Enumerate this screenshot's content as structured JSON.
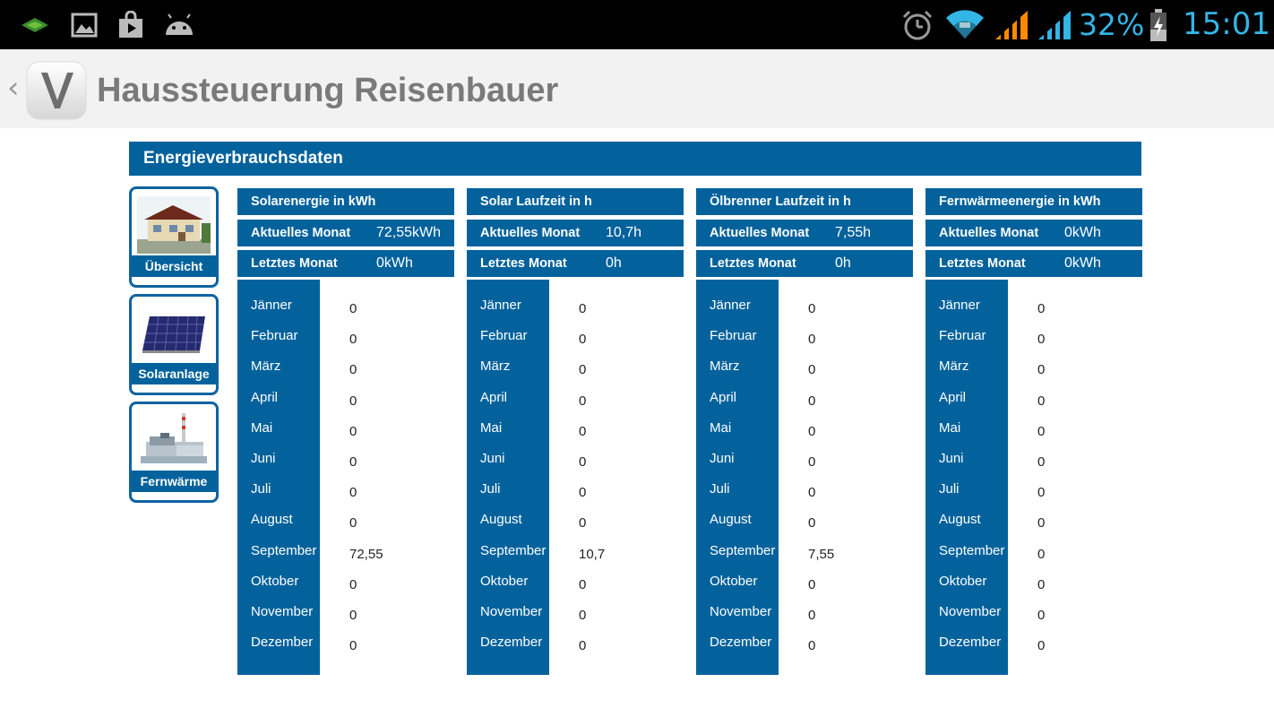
{
  "status_bar": {
    "left_icons": [
      "stack-app-icon",
      "gallery-icon",
      "store-icon",
      "android-icon"
    ],
    "right_icons": [
      "alarm-icon",
      "wifi-icon",
      "signal-orange-icon",
      "signal-blue-icon",
      "battery-charging-icon"
    ],
    "battery": "32%",
    "time": "15:01",
    "accent": "#33b5e5"
  },
  "action_bar": {
    "title": "Haussteuerung Reisenbauer",
    "logo_letter": "V"
  },
  "page": {
    "header": "Energieverbrauchsdaten",
    "brand_color": "#03629c"
  },
  "nav": [
    {
      "label": "Übersicht",
      "icon": "house-icon"
    },
    {
      "label": "Solaranlage",
      "icon": "solar-panel-icon"
    },
    {
      "label": "Fernwärme",
      "icon": "heating-plant-icon"
    }
  ],
  "columns": [
    {
      "title": "Solarenergie in kWh",
      "current_label": "Aktuelles Monat",
      "current_value": "72,55kWh",
      "last_label": "Letztes Monat",
      "last_value": "0kWh",
      "months": [
        {
          "name": "Jänner",
          "value": "0"
        },
        {
          "name": "Februar",
          "value": "0"
        },
        {
          "name": "März",
          "value": "0"
        },
        {
          "name": "April",
          "value": "0"
        },
        {
          "name": "Mai",
          "value": "0"
        },
        {
          "name": "Juni",
          "value": "0"
        },
        {
          "name": "Juli",
          "value": "0"
        },
        {
          "name": "August",
          "value": "0"
        },
        {
          "name": "September",
          "value": "72,55"
        },
        {
          "name": "Oktober",
          "value": "0"
        },
        {
          "name": "November",
          "value": "0"
        },
        {
          "name": "Dezember",
          "value": "0"
        }
      ]
    },
    {
      "title": "Solar Laufzeit in h",
      "current_label": "Aktuelles Monat",
      "current_value": "10,7h",
      "last_label": "Letztes Monat",
      "last_value": "0h",
      "months": [
        {
          "name": "Jänner",
          "value": "0"
        },
        {
          "name": "Februar",
          "value": "0"
        },
        {
          "name": "März",
          "value": "0"
        },
        {
          "name": "April",
          "value": "0"
        },
        {
          "name": "Mai",
          "value": "0"
        },
        {
          "name": "Juni",
          "value": "0"
        },
        {
          "name": "Juli",
          "value": "0"
        },
        {
          "name": "August",
          "value": "0"
        },
        {
          "name": "September",
          "value": "10,7"
        },
        {
          "name": "Oktober",
          "value": "0"
        },
        {
          "name": "November",
          "value": "0"
        },
        {
          "name": "Dezember",
          "value": "0"
        }
      ]
    },
    {
      "title": "Ölbrenner Laufzeit in h",
      "current_label": "Aktuelles Monat",
      "current_value": "7,55h",
      "last_label": "Letztes Monat",
      "last_value": "0h",
      "months": [
        {
          "name": "Jänner",
          "value": "0"
        },
        {
          "name": "Februar",
          "value": "0"
        },
        {
          "name": "März",
          "value": "0"
        },
        {
          "name": "April",
          "value": "0"
        },
        {
          "name": "Mai",
          "value": "0"
        },
        {
          "name": "Juni",
          "value": "0"
        },
        {
          "name": "Juli",
          "value": "0"
        },
        {
          "name": "August",
          "value": "0"
        },
        {
          "name": "September",
          "value": "7,55"
        },
        {
          "name": "Oktober",
          "value": "0"
        },
        {
          "name": "November",
          "value": "0"
        },
        {
          "name": "Dezember",
          "value": "0"
        }
      ]
    },
    {
      "title": "Fernwärmeenergie in kWh",
      "current_label": "Aktuelles Monat",
      "current_value": "0kWh",
      "last_label": "Letztes Monat",
      "last_value": "0kWh",
      "months": [
        {
          "name": "Jänner",
          "value": "0"
        },
        {
          "name": "Februar",
          "value": "0"
        },
        {
          "name": "März",
          "value": "0"
        },
        {
          "name": "April",
          "value": "0"
        },
        {
          "name": "Mai",
          "value": "0"
        },
        {
          "name": "Juni",
          "value": "0"
        },
        {
          "name": "Juli",
          "value": "0"
        },
        {
          "name": "August",
          "value": "0"
        },
        {
          "name": "September",
          "value": "0"
        },
        {
          "name": "Oktober",
          "value": "0"
        },
        {
          "name": "November",
          "value": "0"
        },
        {
          "name": "Dezember",
          "value": "0"
        }
      ]
    }
  ]
}
